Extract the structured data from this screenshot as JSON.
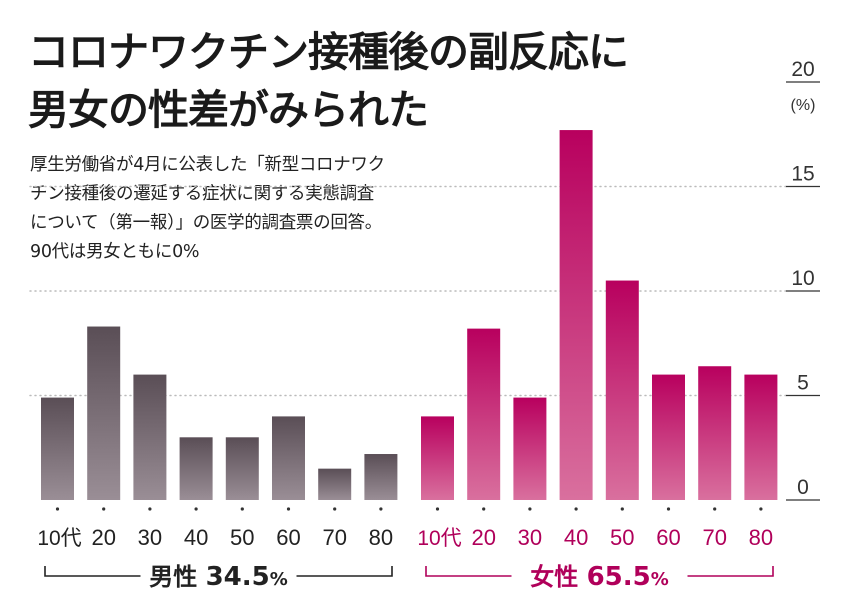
{
  "title_lines": [
    "コロナワクチン接種後の副反応に",
    "男女の性差がみられた"
  ],
  "subtitle_lines": [
    "厚生労働省が4月に公表した「新型コロナワク",
    "チン接種後の遷延する症状に関する実態調査",
    "について（第一報）」の医学的調査票の回答。",
    "90代は男女ともに0%"
  ],
  "colors": {
    "male_bar_top": "#5a4e56",
    "male_bar_bottom": "#9a8e96",
    "female_bar_top": "#b8005e",
    "female_bar_bottom": "#d9709e",
    "female_text": "#b0005a",
    "male_text": "#222222",
    "grid": "#bbbbbb"
  },
  "chart_data": {
    "type": "bar",
    "ylim": [
      0,
      20
    ],
    "y_unit": "(%)",
    "y_ticks": [
      "0",
      "5",
      "10",
      "15",
      "20"
    ],
    "grid": true,
    "groups": [
      {
        "name": "男性",
        "percent_label": "34.5",
        "percent_sign": "%",
        "categories": [
          "10代",
          "20",
          "30",
          "40",
          "50",
          "60",
          "70",
          "80"
        ],
        "values": [
          4.9,
          8.3,
          6.0,
          3.0,
          3.0,
          4.0,
          1.5,
          2.2
        ]
      },
      {
        "name": "女性",
        "percent_label": "65.5",
        "percent_sign": "%",
        "categories": [
          "10代",
          "20",
          "30",
          "40",
          "50",
          "60",
          "70",
          "80"
        ],
        "values": [
          4.0,
          8.2,
          4.9,
          17.7,
          10.5,
          6.0,
          6.4,
          6.0
        ]
      }
    ]
  }
}
